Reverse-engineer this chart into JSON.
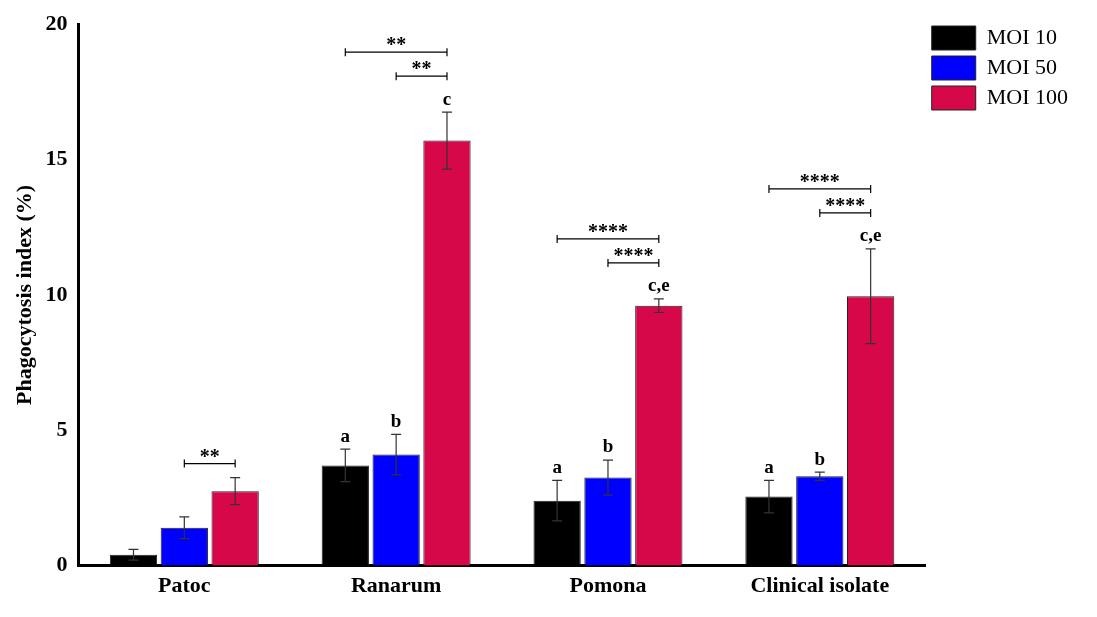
{
  "chart_data": {
    "type": "bar",
    "ylabel": "Phagocytosis index (%)",
    "categories": [
      "Patoc",
      "Ranarum",
      "Pomona",
      "Clinical isolate"
    ],
    "series": [
      {
        "name": "MOI 10",
        "color": "#000000",
        "values": [
          0.4,
          3.7,
          2.4,
          2.55
        ],
        "errors": [
          0.2,
          0.6,
          0.75,
          0.6
        ],
        "value_labels": [
          null,
          "a",
          "a",
          "a"
        ]
      },
      {
        "name": "MOI 50",
        "color": "#0000ff",
        "values": [
          1.4,
          4.1,
          3.25,
          3.3
        ],
        "errors": [
          0.4,
          0.75,
          0.65,
          0.15
        ],
        "value_labels": [
          null,
          "b",
          "b",
          "b"
        ]
      },
      {
        "name": "MOI 100",
        "color": "#d6084a",
        "values": [
          2.75,
          15.7,
          9.6,
          9.95
        ],
        "errors": [
          0.5,
          1.05,
          0.25,
          1.75
        ],
        "value_labels": [
          null,
          "c",
          "c,e",
          "c,e"
        ]
      }
    ],
    "annotations": [
      "**",
      "**",
      "**",
      "****",
      "****",
      "****",
      "****"
    ],
    "ylim": [
      0,
      20
    ],
    "yticks": [
      0,
      5,
      10,
      15,
      20
    ],
    "grid": false,
    "legend": "top right"
  }
}
